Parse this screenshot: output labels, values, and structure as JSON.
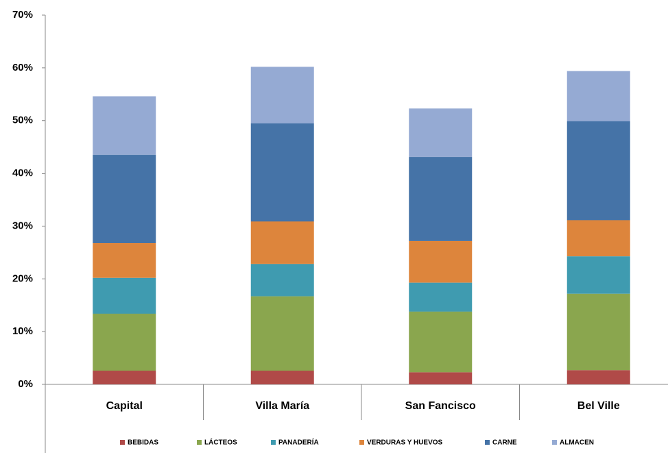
{
  "chart_data": {
    "type": "stacked_bar",
    "categories": [
      "Capital",
      "Villa María",
      "San Fancisco",
      "Bel Ville"
    ],
    "series": [
      {
        "name": "BEBIDAS",
        "color": "#b04a48",
        "values": [
          2.6,
          2.6,
          2.3,
          2.7
        ]
      },
      {
        "name": "LÁCTEOS",
        "color": "#8aa64e",
        "values": [
          10.8,
          14.1,
          11.5,
          14.5
        ]
      },
      {
        "name": "PANADERÍA",
        "color": "#3f9bb0",
        "values": [
          6.8,
          6.1,
          5.5,
          7.1
        ]
      },
      {
        "name": "VERDURAS Y HUEVOS",
        "color": "#dd853c",
        "values": [
          6.6,
          8.1,
          7.9,
          6.8
        ]
      },
      {
        "name": "CARNE",
        "color": "#4573a7",
        "values": [
          16.7,
          18.6,
          15.9,
          18.8
        ]
      },
      {
        "name": "ALMACEN",
        "color": "#95aad3",
        "values": [
          11.1,
          10.7,
          9.2,
          9.5
        ]
      }
    ],
    "ylim": [
      0,
      70
    ],
    "yticks": [
      {
        "value": 0,
        "label": "0%"
      },
      {
        "value": 10,
        "label": "10%"
      },
      {
        "value": 20,
        "label": "20%"
      },
      {
        "value": 30,
        "label": "30%"
      },
      {
        "value": 40,
        "label": "40%"
      },
      {
        "value": 50,
        "label": "50%"
      },
      {
        "value": 60,
        "label": "60%"
      },
      {
        "value": 70,
        "label": "70%"
      }
    ],
    "legend": "bottom"
  }
}
